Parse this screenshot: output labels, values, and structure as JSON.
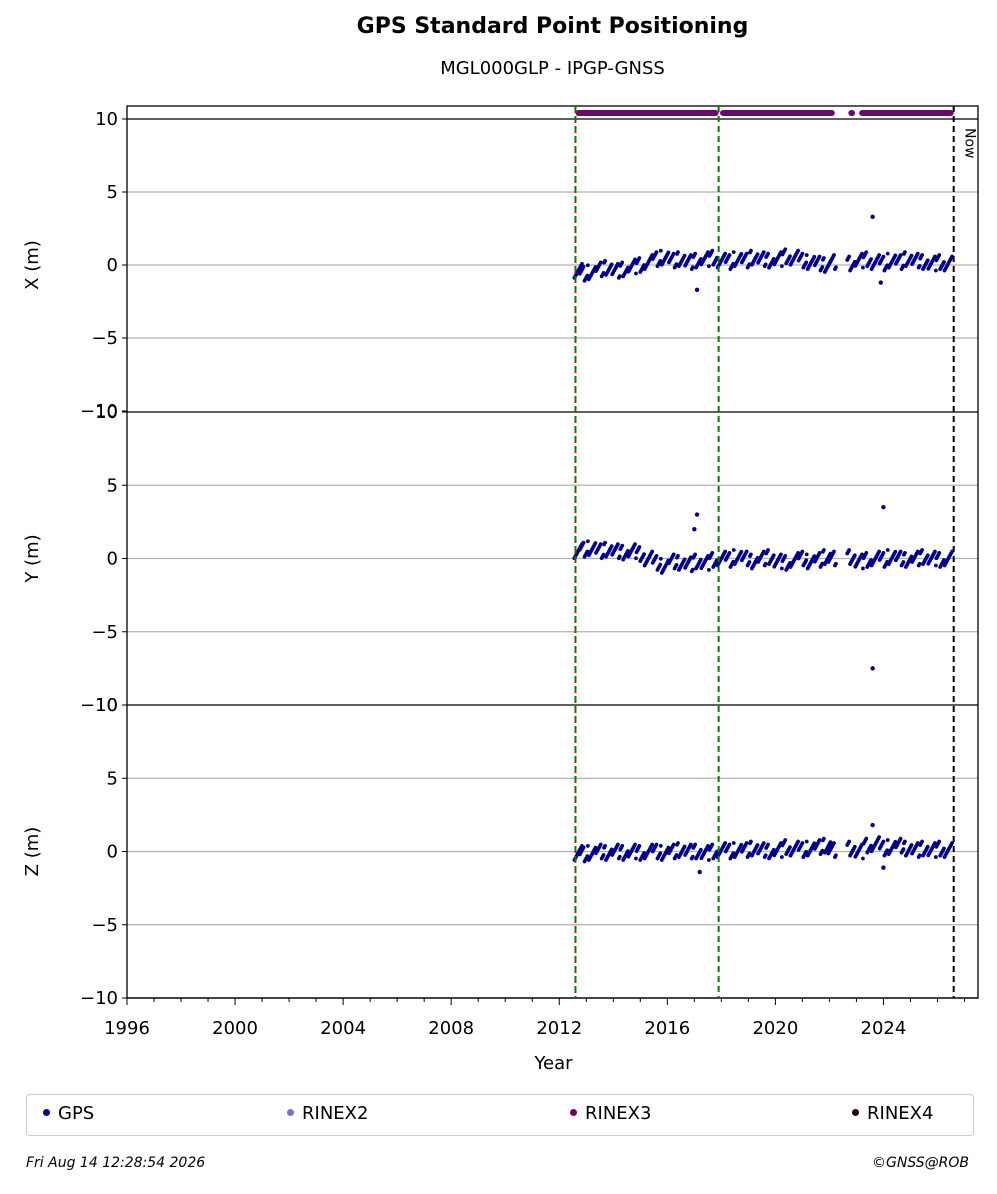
{
  "chart_data": {
    "type": "scatter",
    "title": "GPS Standard Point Positioning",
    "subtitle": "MGL000GLP - IPGP-GNSS",
    "xlabel": "Year",
    "xlim": [
      1996,
      2027.5
    ],
    "x_ticks": [
      "1996",
      "2000",
      "2004",
      "2008",
      "2012",
      "2016",
      "2020",
      "2024"
    ],
    "grid": true,
    "panels": [
      {
        "ylabel": "X (m)",
        "ylim": [
          -10,
          10
        ],
        "y_ticks": [
          "10",
          "5",
          "0",
          "−5",
          "−10"
        ],
        "series": {
          "name": "GPS",
          "x": [
            2012.7,
            2012.9,
            2013.2,
            2013.5,
            2013.8,
            2014.1,
            2014.4,
            2014.7,
            2015.0,
            2015.3,
            2015.6,
            2015.9,
            2016.2,
            2016.5,
            2016.8,
            2017.1,
            2017.4,
            2017.7,
            2018.0,
            2018.3,
            2018.6,
            2018.9,
            2019.2,
            2019.5,
            2019.8,
            2020.1,
            2020.4,
            2020.7,
            2021.0,
            2021.3,
            2021.6,
            2021.9,
            2022.1,
            2022.8,
            2023.1,
            2023.4,
            2023.7,
            2024.0,
            2024.3,
            2024.6,
            2024.9,
            2025.2,
            2025.5,
            2025.8,
            2026.1,
            2026.4
          ],
          "y": [
            -0.4,
            -0.6,
            -0.5,
            -0.3,
            -0.2,
            -0.4,
            -0.3,
            -0.1,
            0.0,
            0.2,
            0.4,
            0.5,
            0.3,
            0.4,
            0.2,
            0.3,
            0.4,
            0.5,
            0.3,
            0.2,
            0.4,
            0.3,
            0.5,
            0.4,
            0.3,
            0.4,
            0.6,
            0.5,
            0.3,
            0.2,
            0.1,
            0.0,
            0.2,
            0.1,
            0.3,
            0.4,
            0.2,
            0.1,
            0.3,
            0.2,
            0.4,
            0.3,
            0.2,
            0.1,
            0.2,
            0.1
          ],
          "outliers_x": [
            2017.1,
            2023.6,
            2023.9
          ],
          "outliers_y": [
            -1.7,
            3.3,
            -1.2
          ]
        }
      },
      {
        "ylabel": "Y (m)",
        "ylim": [
          -10,
          10
        ],
        "y_ticks": [
          "10",
          "5",
          "0",
          "−5",
          "−10"
        ],
        "series": {
          "name": "GPS",
          "x": [
            2012.7,
            2012.9,
            2013.2,
            2013.5,
            2013.8,
            2014.1,
            2014.4,
            2014.7,
            2015.0,
            2015.3,
            2015.6,
            2015.9,
            2016.2,
            2016.5,
            2016.8,
            2017.1,
            2017.4,
            2017.7,
            2018.0,
            2018.3,
            2018.6,
            2018.9,
            2019.2,
            2019.5,
            2019.8,
            2020.1,
            2020.4,
            2020.7,
            2021.0,
            2021.3,
            2021.6,
            2021.9,
            2022.1,
            2022.8,
            2023.1,
            2023.4,
            2023.7,
            2024.0,
            2024.3,
            2024.6,
            2024.9,
            2025.2,
            2025.5,
            2025.8,
            2026.1,
            2026.4
          ],
          "y": [
            0.5,
            0.6,
            0.7,
            0.5,
            0.6,
            0.5,
            0.4,
            0.5,
            0.3,
            0.0,
            -0.3,
            -0.5,
            -0.2,
            -0.3,
            -0.4,
            -0.2,
            -0.3,
            -0.1,
            0.0,
            -0.1,
            0.1,
            0.0,
            -0.2,
            0.0,
            0.1,
            -0.2,
            -0.3,
            -0.1,
            0.0,
            -0.2,
            -0.1,
            0.1,
            0.0,
            0.1,
            -0.2,
            -0.1,
            0.0,
            -0.1,
            0.1,
            0.0,
            -0.1,
            0.0,
            0.1,
            0.0,
            -0.1,
            0.0
          ],
          "outliers_x": [
            2017.0,
            2017.1,
            2023.6,
            2024.0
          ],
          "outliers_y": [
            2.0,
            3.0,
            -7.5,
            3.5
          ]
        }
      },
      {
        "ylabel": "Z (m)",
        "ylim": [
          -10,
          10
        ],
        "y_ticks": [
          "10",
          "5",
          "0",
          "−5",
          "−10"
        ],
        "series": {
          "name": "GPS",
          "x": [
            2012.7,
            2012.9,
            2013.2,
            2013.5,
            2013.8,
            2014.1,
            2014.4,
            2014.7,
            2015.0,
            2015.3,
            2015.6,
            2015.9,
            2016.2,
            2016.5,
            2016.8,
            2017.1,
            2017.4,
            2017.7,
            2018.0,
            2018.3,
            2018.6,
            2018.9,
            2019.2,
            2019.5,
            2019.8,
            2020.1,
            2020.4,
            2020.7,
            2021.0,
            2021.3,
            2021.6,
            2021.9,
            2022.1,
            2022.8,
            2023.1,
            2023.4,
            2023.7,
            2024.0,
            2024.3,
            2024.6,
            2024.9,
            2025.2,
            2025.5,
            2025.8,
            2026.1,
            2026.4
          ],
          "y": [
            -0.1,
            -0.2,
            -0.1,
            0.0,
            -0.1,
            0.0,
            -0.1,
            0.0,
            -0.1,
            0.0,
            0.0,
            -0.1,
            0.0,
            0.1,
            0.0,
            0.0,
            -0.1,
            0.0,
            0.1,
            0.0,
            0.1,
            0.1,
            0.2,
            0.1,
            0.0,
            0.1,
            0.3,
            0.2,
            0.1,
            0.2,
            0.3,
            0.4,
            0.1,
            0.2,
            0.0,
            0.4,
            0.5,
            0.2,
            0.3,
            0.4,
            0.2,
            0.1,
            0.2,
            0.1,
            0.2,
            0.1
          ],
          "outliers_x": [
            2017.2,
            2023.6,
            2024.0
          ],
          "outliers_y": [
            -1.4,
            1.8,
            -1.1
          ]
        }
      }
    ],
    "vertical_lines": [
      {
        "x": 2012.6,
        "color": "#ff0000",
        "style": "dotted"
      },
      {
        "x": 2012.6,
        "color": "#008000",
        "style": "dashed"
      },
      {
        "x": 2017.9,
        "color": "#008000",
        "style": "dashed"
      },
      {
        "x": 2026.6,
        "color": "#000000",
        "style": "dashed",
        "label": "Now"
      }
    ],
    "rinex3_segments": [
      [
        2012.6,
        2017.9
      ],
      [
        2017.95,
        2022.2
      ],
      [
        2022.7,
        2022.95
      ],
      [
        2023.1,
        2026.6
      ]
    ],
    "colors": {
      "gps": "#00008b",
      "rinex2": "#7b72b8",
      "rinex3": "#6a0a6a",
      "rinex4": "#1a0010",
      "grid": "#b0b0b0"
    }
  },
  "legend": [
    {
      "label": "GPS",
      "color": "#00008b"
    },
    {
      "label": "RINEX2",
      "color": "#7b72b8"
    },
    {
      "label": "RINEX3",
      "color": "#6a0a6a"
    },
    {
      "label": "RINEX4",
      "color": "#1a0010"
    }
  ],
  "footer": {
    "date": "Fri Aug 14 12:28:54 2026",
    "credit": "©GNSS@ROB"
  }
}
